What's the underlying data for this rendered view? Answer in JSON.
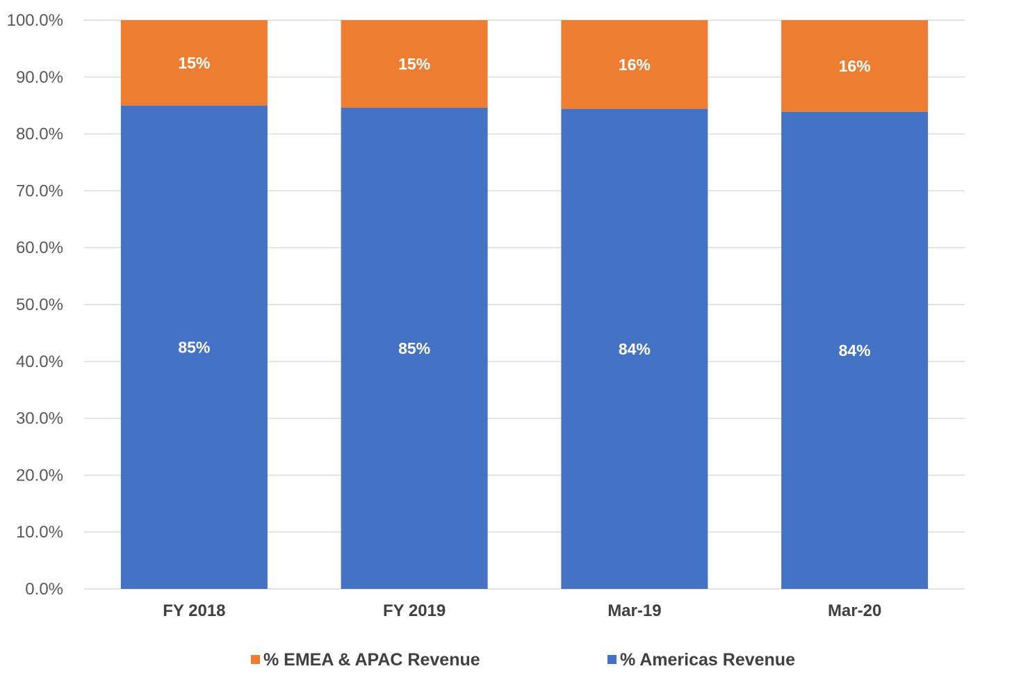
{
  "chart_data": {
    "type": "bar",
    "stacked": true,
    "categories": [
      "FY 2018",
      "FY 2019",
      "Mar-19",
      "Mar-20"
    ],
    "series": [
      {
        "name": "% Americas Revenue",
        "values": [
          85.0,
          84.6,
          84.4,
          83.9
        ],
        "labels": [
          "85%",
          "85%",
          "84%",
          "84%"
        ],
        "color": "#4472C4"
      },
      {
        "name": "% EMEA & APAC Revenue",
        "values": [
          15.0,
          15.4,
          15.6,
          16.1
        ],
        "labels": [
          "15%",
          "15%",
          "16%",
          "16%"
        ],
        "color": "#ED7D31"
      }
    ],
    "yticks": [
      "0.0%",
      "10.0%",
      "20.0%",
      "30.0%",
      "40.0%",
      "50.0%",
      "60.0%",
      "70.0%",
      "80.0%",
      "90.0%",
      "100.0%"
    ],
    "ylim": [
      0,
      100
    ],
    "grid": true,
    "legend": {
      "position": "bottom",
      "order": [
        "% EMEA & APAC Revenue",
        "% Americas Revenue"
      ]
    }
  }
}
